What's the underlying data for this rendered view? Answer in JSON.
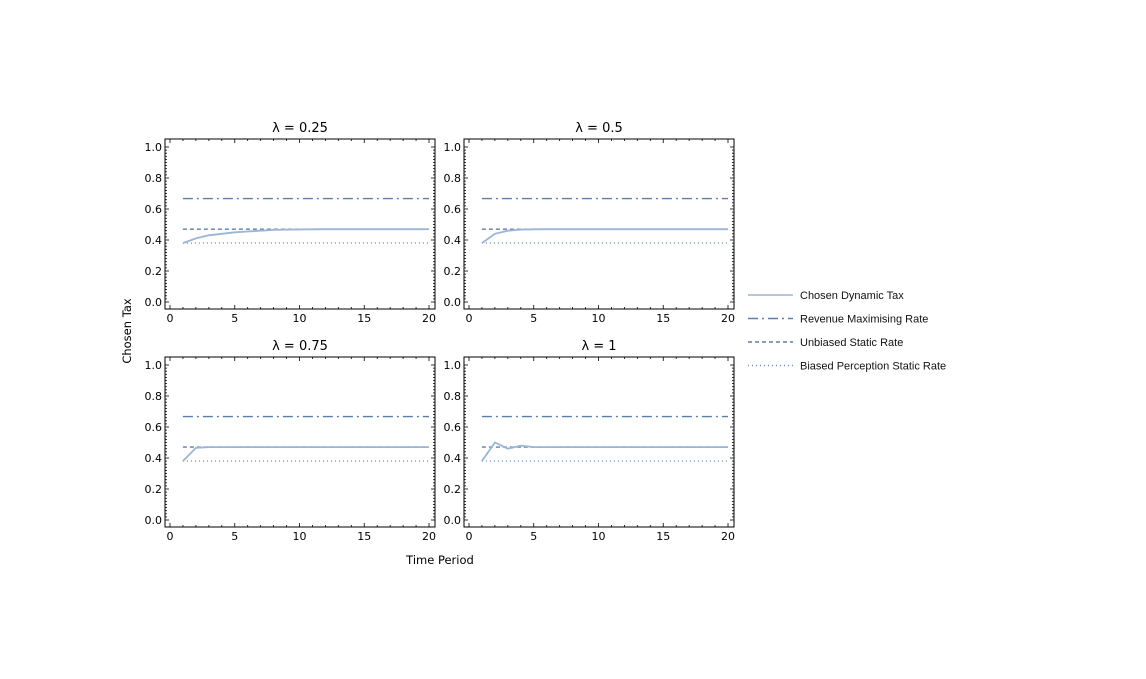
{
  "chart_data": {
    "type": "line",
    "xlabel": "Time Period",
    "ylabel": "Chosen Tax",
    "xlim": [
      0,
      20.5
    ],
    "ylim": [
      0,
      1.05
    ],
    "xticks": [
      "0",
      "5",
      "10",
      "15",
      "20"
    ],
    "yticks": [
      "0.0",
      "0.2",
      "0.4",
      "0.6",
      "0.8",
      "1.0"
    ],
    "series_styles": {
      "Chosen Dynamic Tax": {
        "color": "#9ab5d6",
        "dash": "solid"
      },
      "Revenue Maximising Rate": {
        "color": "#5b7fad",
        "dash": "dash-dot"
      },
      "Unbiased Static Rate": {
        "color": "#5b7fad",
        "dash": "dashed"
      },
      "Biased Perception Static Rate": {
        "color": "#6f8fba",
        "dash": "dotted"
      }
    },
    "legend": {
      "placement": "right",
      "entries": [
        "Chosen Dynamic Tax",
        "Revenue Maximising Rate",
        "Unbiased Static Rate",
        "Biased Perception Static Rate"
      ]
    },
    "panels": [
      {
        "title": "λ = 0.25",
        "series": [
          {
            "name": "Chosen Dynamic Tax",
            "x": [
              1,
              2,
              3,
              4,
              5,
              6,
              7,
              8,
              9,
              10,
              11,
              12,
              13,
              14,
              15,
              16,
              17,
              18,
              19,
              20
            ],
            "values": [
              0.38,
              0.41,
              0.43,
              0.44,
              0.45,
              0.455,
              0.46,
              0.465,
              0.467,
              0.468,
              0.469,
              0.47,
              0.47,
              0.47,
              0.47,
              0.47,
              0.47,
              0.47,
              0.47,
              0.47
            ]
          },
          {
            "name": "Revenue Maximising Rate",
            "x": [
              1,
              20
            ],
            "values": [
              0.667,
              0.667
            ]
          },
          {
            "name": "Unbiased Static Rate",
            "x": [
              1,
              20
            ],
            "values": [
              0.47,
              0.47
            ]
          },
          {
            "name": "Biased Perception Static Rate",
            "x": [
              1,
              20
            ],
            "values": [
              0.38,
              0.38
            ]
          }
        ]
      },
      {
        "title": "λ = 0.5",
        "series": [
          {
            "name": "Chosen Dynamic Tax",
            "x": [
              1,
              2,
              3,
              4,
              5,
              6,
              7,
              8,
              9,
              10,
              11,
              12,
              13,
              14,
              15,
              16,
              17,
              18,
              19,
              20
            ],
            "values": [
              0.38,
              0.44,
              0.46,
              0.467,
              0.469,
              0.47,
              0.47,
              0.47,
              0.47,
              0.47,
              0.47,
              0.47,
              0.47,
              0.47,
              0.47,
              0.47,
              0.47,
              0.47,
              0.47,
              0.47
            ]
          },
          {
            "name": "Revenue Maximising Rate",
            "x": [
              1,
              20
            ],
            "values": [
              0.667,
              0.667
            ]
          },
          {
            "name": "Unbiased Static Rate",
            "x": [
              1,
              20
            ],
            "values": [
              0.47,
              0.47
            ]
          },
          {
            "name": "Biased Perception Static Rate",
            "x": [
              1,
              20
            ],
            "values": [
              0.38,
              0.38
            ]
          }
        ]
      },
      {
        "title": "λ = 0.75",
        "series": [
          {
            "name": "Chosen Dynamic Tax",
            "x": [
              1,
              2,
              3,
              4,
              5,
              6,
              7,
              8,
              9,
              10,
              11,
              12,
              13,
              14,
              15,
              16,
              17,
              18,
              19,
              20
            ],
            "values": [
              0.38,
              0.465,
              0.47,
              0.47,
              0.47,
              0.47,
              0.47,
              0.47,
              0.47,
              0.47,
              0.47,
              0.47,
              0.47,
              0.47,
              0.47,
              0.47,
              0.47,
              0.47,
              0.47,
              0.47
            ]
          },
          {
            "name": "Revenue Maximising Rate",
            "x": [
              1,
              20
            ],
            "values": [
              0.667,
              0.667
            ]
          },
          {
            "name": "Unbiased Static Rate",
            "x": [
              1,
              20
            ],
            "values": [
              0.47,
              0.47
            ]
          },
          {
            "name": "Biased Perception Static Rate",
            "x": [
              1,
              20
            ],
            "values": [
              0.38,
              0.38
            ]
          }
        ]
      },
      {
        "title": "λ = 1",
        "series": [
          {
            "name": "Chosen Dynamic Tax",
            "x": [
              1,
              2,
              3,
              4,
              5,
              6,
              7,
              8,
              9,
              10,
              11,
              12,
              13,
              14,
              15,
              16,
              17,
              18,
              19,
              20
            ],
            "values": [
              0.38,
              0.5,
              0.46,
              0.48,
              0.47,
              0.47,
              0.47,
              0.47,
              0.47,
              0.47,
              0.47,
              0.47,
              0.47,
              0.47,
              0.47,
              0.47,
              0.47,
              0.47,
              0.47,
              0.47
            ]
          },
          {
            "name": "Revenue Maximising Rate",
            "x": [
              1,
              20
            ],
            "values": [
              0.667,
              0.667
            ]
          },
          {
            "name": "Unbiased Static Rate",
            "x": [
              1,
              20
            ],
            "values": [
              0.47,
              0.47
            ]
          },
          {
            "name": "Biased Perception Static Rate",
            "x": [
              1,
              20
            ],
            "values": [
              0.38,
              0.38
            ]
          }
        ]
      }
    ]
  }
}
